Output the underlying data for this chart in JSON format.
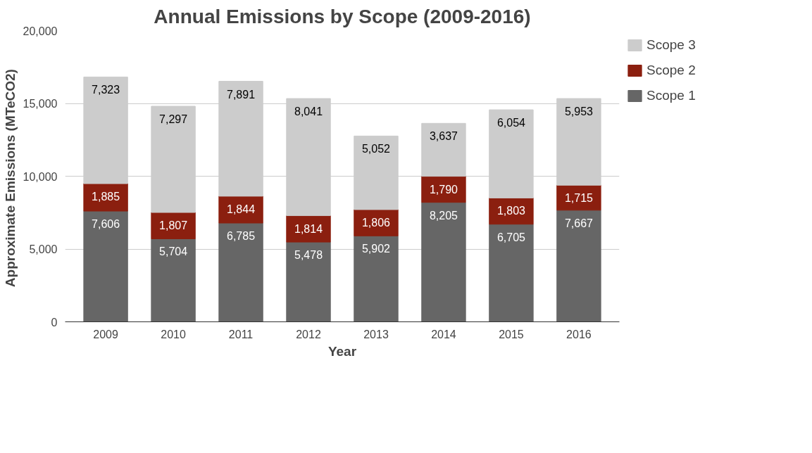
{
  "chart_data": {
    "type": "bar",
    "title": "Annual Emissions by Scope (2009-2016)",
    "xlabel": "Year",
    "ylabel": "Approximate Emissions  (MTeCO2)",
    "categories": [
      "2009",
      "2010",
      "2011",
      "2012",
      "2013",
      "2014",
      "2015",
      "2016"
    ],
    "series": [
      {
        "name": "Scope 1",
        "color": "#666666",
        "values": [
          7606,
          5704,
          6785,
          5478,
          5902,
          8205,
          6705,
          7667
        ],
        "value_labels": [
          "7,606",
          "5,704",
          "6,785",
          "5,478",
          "5,902",
          "8,205",
          "6,705",
          "7,667"
        ]
      },
      {
        "name": "Scope 2",
        "color": "#8b1f0f",
        "values": [
          1885,
          1807,
          1844,
          1814,
          1806,
          1790,
          1803,
          1715
        ],
        "value_labels": [
          "1,885",
          "1,807",
          "1,844",
          "1,814",
          "1,806",
          "1,790",
          "1,803",
          "1,715"
        ]
      },
      {
        "name": "Scope 3",
        "color": "#cccccc",
        "values": [
          7323,
          7297,
          7891,
          8041,
          5052,
          3637,
          6054,
          5953
        ],
        "value_labels": [
          "7,323",
          "7,297",
          "7,891",
          "8,041",
          "5,052",
          "3,637",
          "6,054",
          "5,953"
        ]
      }
    ],
    "stacked": true,
    "ylim": [
      0,
      20000
    ],
    "yticks": [
      0,
      {
        "value": 5000,
        "label": "5,000"
      },
      {
        "value": 10000,
        "label": "10,000"
      },
      {
        "value": 15000,
        "label": "15,000"
      },
      {
        "value": 20000,
        "label": "20,000"
      }
    ],
    "grid": "y",
    "legend": "top right"
  }
}
